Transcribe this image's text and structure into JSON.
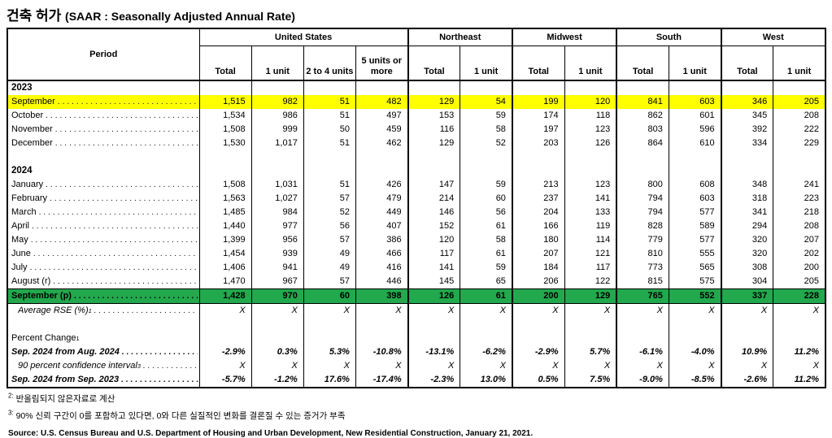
{
  "title": {
    "ko": "건축 허가",
    "en": "(SAAR : Seasonally Adjusted Annual Rate)"
  },
  "colors": {
    "highlight_yellow": "#FFFF00",
    "highlight_green": "#22A84D",
    "border": "#000000"
  },
  "table": {
    "period_header": "Period",
    "groups": [
      {
        "label": "United States",
        "columns": [
          "Total",
          "1 unit",
          "2 to 4 units",
          "5 units or more"
        ]
      },
      {
        "label": "Northeast",
        "columns": [
          "Total",
          "1 unit"
        ]
      },
      {
        "label": "Midwest",
        "columns": [
          "Total",
          "1 unit"
        ]
      },
      {
        "label": "South",
        "columns": [
          "Total",
          "1 unit"
        ]
      },
      {
        "label": "West",
        "columns": [
          "Total",
          "1 unit"
        ]
      }
    ],
    "rows": [
      {
        "type": "year",
        "label": "2023"
      },
      {
        "type": "month",
        "label": "September",
        "dots": true,
        "highlight": "yellow",
        "values": [
          "1,515",
          "982",
          "51",
          "482",
          "129",
          "54",
          "199",
          "120",
          "841",
          "603",
          "346",
          "205"
        ]
      },
      {
        "type": "month",
        "label": "October",
        "dots": true,
        "values": [
          "1,534",
          "986",
          "51",
          "497",
          "153",
          "59",
          "174",
          "118",
          "862",
          "601",
          "345",
          "208"
        ]
      },
      {
        "type": "month",
        "label": "November",
        "dots": true,
        "values": [
          "1,508",
          "999",
          "50",
          "459",
          "116",
          "58",
          "197",
          "123",
          "803",
          "596",
          "392",
          "222"
        ]
      },
      {
        "type": "month",
        "label": "December",
        "dots": true,
        "values": [
          "1,530",
          "1,017",
          "51",
          "462",
          "129",
          "52",
          "203",
          "126",
          "864",
          "610",
          "334",
          "229"
        ]
      },
      {
        "type": "blank"
      },
      {
        "type": "year",
        "label": "2024"
      },
      {
        "type": "month",
        "label": "January",
        "dots": true,
        "values": [
          "1,508",
          "1,031",
          "51",
          "426",
          "147",
          "59",
          "213",
          "123",
          "800",
          "608",
          "348",
          "241"
        ]
      },
      {
        "type": "month",
        "label": "February",
        "dots": true,
        "values": [
          "1,563",
          "1,027",
          "57",
          "479",
          "214",
          "60",
          "237",
          "141",
          "794",
          "603",
          "318",
          "223"
        ]
      },
      {
        "type": "month",
        "label": "March",
        "dots": true,
        "values": [
          "1,485",
          "984",
          "52",
          "449",
          "146",
          "56",
          "204",
          "133",
          "794",
          "577",
          "341",
          "218"
        ]
      },
      {
        "type": "month",
        "label": "April",
        "dots": true,
        "values": [
          "1,440",
          "977",
          "56",
          "407",
          "152",
          "61",
          "166",
          "119",
          "828",
          "589",
          "294",
          "208"
        ]
      },
      {
        "type": "month",
        "label": "May",
        "dots": true,
        "values": [
          "1,399",
          "956",
          "57",
          "386",
          "120",
          "58",
          "180",
          "114",
          "779",
          "577",
          "320",
          "207"
        ]
      },
      {
        "type": "month",
        "label": "June",
        "dots": true,
        "values": [
          "1,454",
          "939",
          "49",
          "466",
          "117",
          "61",
          "207",
          "121",
          "810",
          "555",
          "320",
          "202"
        ]
      },
      {
        "type": "month",
        "label": "July",
        "dots": true,
        "values": [
          "1,406",
          "941",
          "49",
          "416",
          "141",
          "59",
          "184",
          "117",
          "773",
          "565",
          "308",
          "200"
        ]
      },
      {
        "type": "month",
        "label": "August (r)",
        "dots": true,
        "values": [
          "1,470",
          "967",
          "57",
          "446",
          "145",
          "65",
          "206",
          "122",
          "815",
          "575",
          "304",
          "205"
        ]
      },
      {
        "type": "month",
        "label": "September (p)",
        "dots": true,
        "highlight": "green",
        "bold": true,
        "values": [
          "1,428",
          "970",
          "60",
          "398",
          "126",
          "61",
          "200",
          "129",
          "765",
          "552",
          "337",
          "228"
        ]
      },
      {
        "type": "stat",
        "label": "Average RSE (%)",
        "sup": "1",
        "italic": true,
        "indent": true,
        "dots": true,
        "values": [
          "X",
          "X",
          "X",
          "X",
          "X",
          "X",
          "X",
          "X",
          "X",
          "X",
          "X",
          "X"
        ]
      },
      {
        "type": "blank"
      },
      {
        "type": "label",
        "label": "Percent Change",
        "sup": "1"
      },
      {
        "type": "change",
        "label": "Sep. 2024 from Aug. 2024",
        "bold": true,
        "italic": true,
        "dots": true,
        "values": [
          "-2.9%",
          "0.3%",
          "5.3%",
          "-10.8%",
          "-13.1%",
          "-6.2%",
          "-2.9%",
          "5.7%",
          "-6.1%",
          "-4.0%",
          "10.9%",
          "11.2%"
        ]
      },
      {
        "type": "stat",
        "label": "90 percent confidence interval",
        "sup": "3",
        "italic": true,
        "indent": true,
        "dots": true,
        "values": [
          "X",
          "X",
          "X",
          "X",
          "X",
          "X",
          "X",
          "X",
          "X",
          "X",
          "X",
          "X"
        ]
      },
      {
        "type": "change",
        "label": "Sep. 2024 from Sep. 2023",
        "bold": true,
        "italic": true,
        "dots": true,
        "values": [
          "-5.7%",
          "-1.2%",
          "17.6%",
          "-17.4%",
          "-2.3%",
          "13.0%",
          "0.5%",
          "7.5%",
          "-9.0%",
          "-8.5%",
          "-2.6%",
          "11.2%"
        ]
      }
    ]
  },
  "footnotes": [
    {
      "marker": "2:",
      "text": "반올림되지 않은자료로 계산"
    },
    {
      "marker": "3:",
      "text": "90% 신뢰 구간이 0를 포함하고 있다면, 0와 다른 실질적인 변화를 결론질 수 있는 증거가 부족"
    }
  ],
  "source": "Source: U.S. Census Bureau and U.S. Department of Housing and Urban Development, New Residential Construction, January 21, 2021."
}
